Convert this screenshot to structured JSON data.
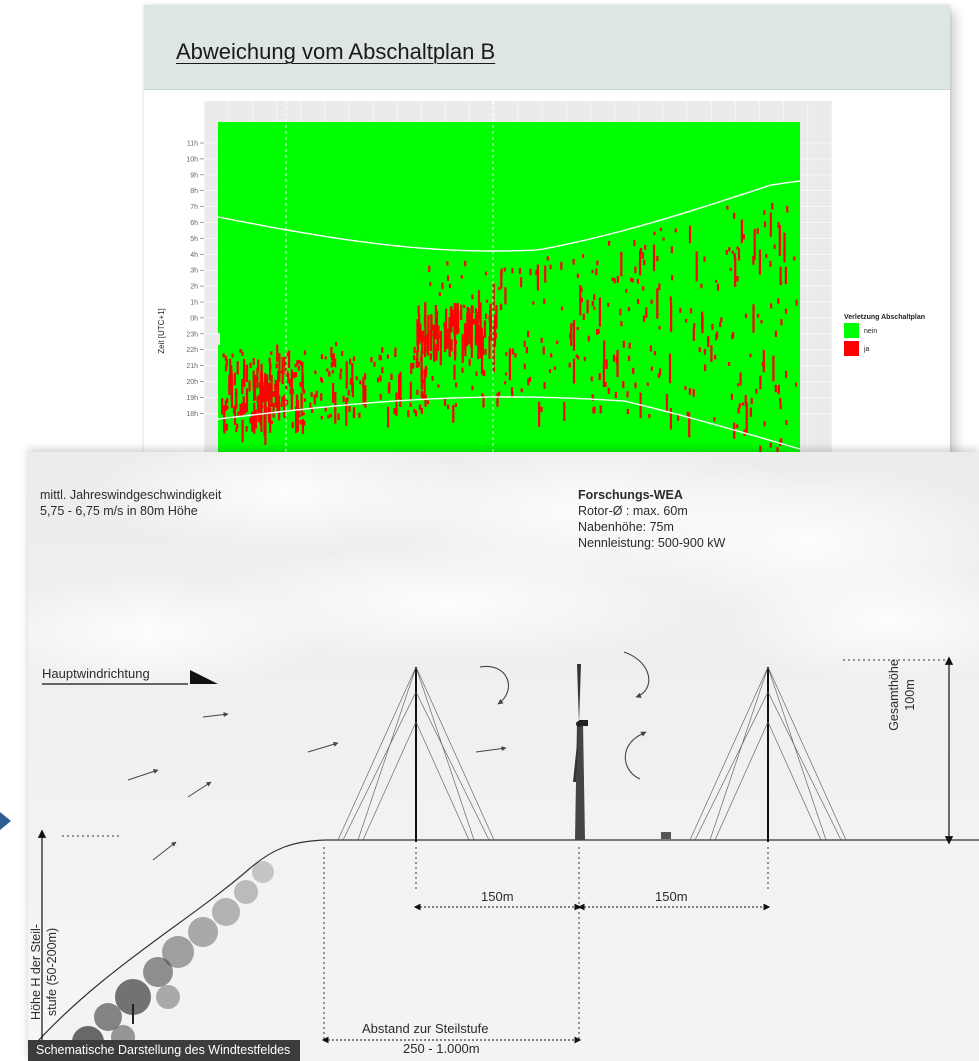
{
  "chart_card": {
    "title": "Abweichung vom Abschaltplan B"
  },
  "chart_data": {
    "type": "heatmap",
    "title": "Abweichung vom Abschaltplan B",
    "xlabel": "",
    "ylabel": "Zeit [UTC+1]",
    "y_ticks": [
      "11h",
      "10h",
      "9h",
      "8h",
      "7h",
      "6h",
      "5h",
      "4h",
      "3h",
      "2h",
      "1h",
      "0h",
      "23h",
      "22h",
      "21h",
      "20h",
      "19h",
      "18h"
    ],
    "grid": true,
    "legend": {
      "title": "Verletzung Abschaltplan",
      "placement": "right",
      "entries": [
        {
          "label": "nein",
          "color": "#00ff00"
        },
        {
          "label": "ja",
          "color": "#ff0000"
        }
      ]
    },
    "background_color": "#ebebeb",
    "boundary_line_color": "#ffffff"
  },
  "diagram": {
    "wind_speed_label": "mittl. Jahreswindgeschwindigkeit",
    "wind_speed_value": "5,75 - 6,75 m/s in 80m Höhe",
    "wea_title": "Forschungs-WEA",
    "wea_rotor": "Rotor-Ø : max. 60m",
    "wea_hub": "Nabenhöhe: 75m",
    "wea_power": "Nennleistung: 500-900 kW",
    "main_wind_direction": "Hauptwindrichtung",
    "total_height_label": "Gesamthöhe",
    "total_height_value": "100m",
    "step_height_label_1": "Höhe H der Steil-",
    "step_height_label_2": "stufe (50-200m)",
    "distance_1": "150m",
    "distance_2": "150m",
    "distance_step_label": "Abstand zur Steilstufe",
    "distance_step_value": "250 - 1.000m",
    "caption": "Schematische Darstellung des Windtestfeldes"
  }
}
